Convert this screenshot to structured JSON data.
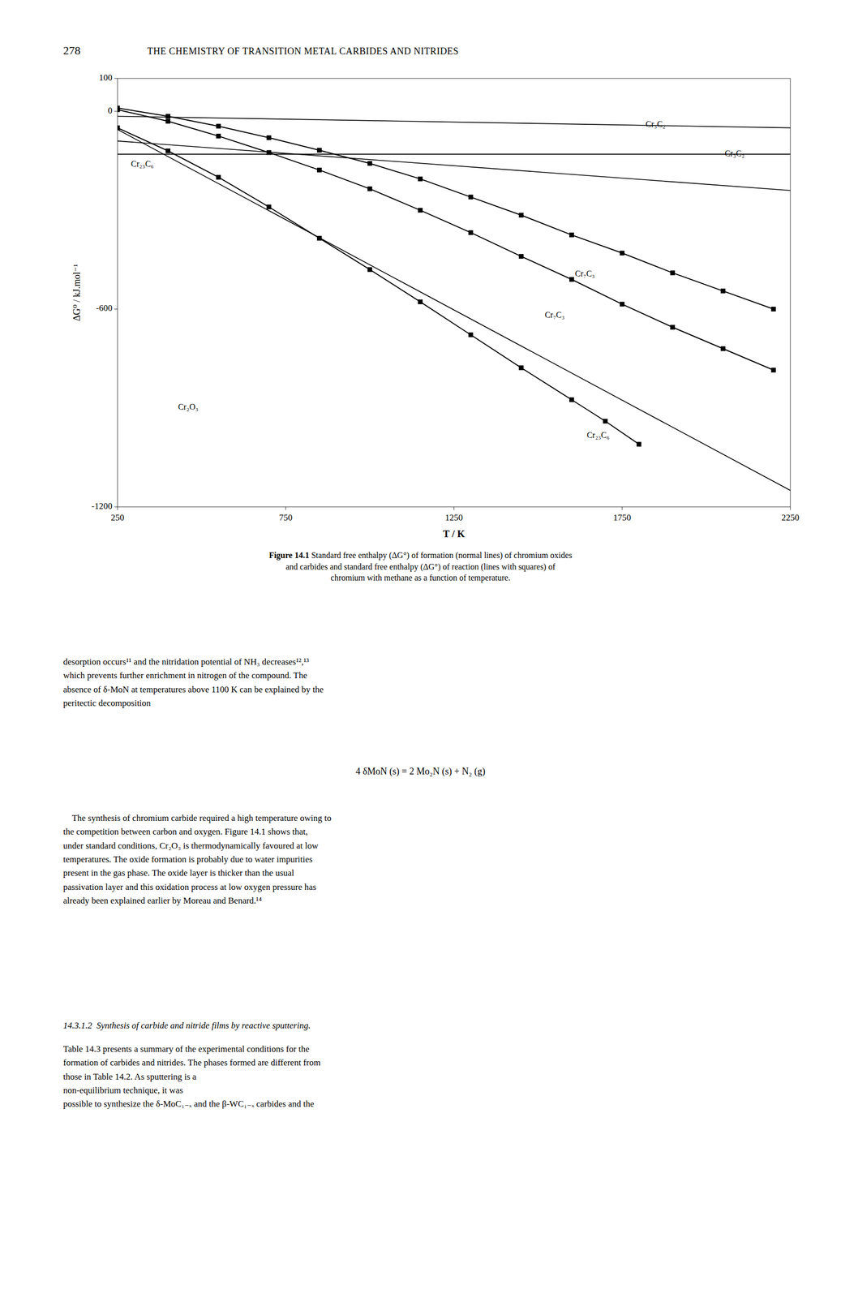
{
  "page": {
    "header_number": "278",
    "header_text": "THE CHEMISTRY OF TRANSITION METAL CARBIDES AND NITRIDES",
    "body_text1": "desorption occurs¹¹ and the nitridation potential of NH₃ decreases¹²,¹³\nwhich prevents further enrichment in nitrogen of the compound. The\nabsence of δ-MoN at temperatures above 1100 K can be explained by the\nperitectic decomposition",
    "equation": "4 δMoN (s) = 2 Mo₂N (s) + N₂ (g)",
    "body_text2": "    The synthesis of chromium carbide required a high temperature owing to\nthe competition between carbon and oxygen. Figure 14.1 shows that,\nunder standard conditions, Cr₂O₃ is thermodynamically favoured at low\ntemperatures. The oxide formation is probably due to water impurities\npresent in the gas phase. The oxide layer is thicker than the usual\npassivation layer and this oxidation process at low oxygen pressure has\nalready been explained earlier by Moreau and Benard.¹⁴",
    "body_text3_italic": "14.3.1.2  Synthesis of carbide and nitride films by reactive sputtering.",
    "body_text3_normal": "Table 14.3 presents a summary of the experimental conditions for the\nformation of carbides and nitrides. The phases formed are different from\nthose in Table 14.2. As sputtering is a \nnon-equilibrium technique, it was\npossible to synthesize the δ-MoC₁₋ₓ and the β-WC₁₋ₓ carbides and the"
  },
  "chart_data": {
    "type": "line",
    "caption_bold": "Figure 14.1",
    "caption_rest": " Standard free enthalpy (ΔG°) of formation (normal lines) of chromium oxides\nand carbides and standard free enthalpy (ΔG°) of reaction (lines with squares) of\nchromium with methane as a function of temperature.",
    "x_label": "T / K",
    "y_label": "ΔG⁰ / kJ.mol⁻¹",
    "xlim": [
      250,
      2250
    ],
    "ylim": [
      -1200,
      100
    ],
    "xticks": [
      250,
      750,
      1250,
      1750,
      2250
    ],
    "yticks": [
      100,
      0,
      -600,
      -1200
    ],
    "grid": false,
    "series": [
      {
        "color": "#000000",
        "marker": "none",
        "line_style": "solid",
        "x": [
          250,
          2250
        ],
        "values": [
          -55,
          -1150
        ]
      },
      {
        "color": "#000000",
        "marker": "none",
        "line_style": "solid",
        "x": [
          250,
          2250
        ],
        "values": [
          -130,
          -130
        ]
      },
      {
        "color": "#000000",
        "marker": "none",
        "line_style": "solid",
        "x": [
          250,
          2250
        ],
        "values": [
          -90,
          -240
        ]
      },
      {
        "color": "#000000",
        "marker": "none",
        "line_style": "solid",
        "x": [
          250,
          2250
        ],
        "values": [
          -15,
          -50
        ]
      },
      {
        "color": "#000000",
        "marker": "square",
        "line_style": "solid",
        "x": [
          250,
          400,
          550,
          700,
          850,
          1000,
          1150,
          1300,
          1450,
          1600,
          1750,
          1900,
          2050,
          2200
        ],
        "values": [
          10,
          -15,
          -45,
          -80,
          -118,
          -158,
          -205,
          -260,
          -315,
          -375,
          -430,
          -490,
          -545,
          -600
        ]
      },
      {
        "color": "#000000",
        "marker": "square",
        "line_style": "solid",
        "x": [
          250,
          400,
          550,
          700,
          850,
          1000,
          1150,
          1300,
          1450,
          1600,
          1750,
          1900,
          2050,
          2200
        ],
        "values": [
          5,
          -30,
          -75,
          -125,
          -178,
          -235,
          -300,
          -368,
          -440,
          -510,
          -585,
          -655,
          -720,
          -785
        ]
      },
      {
        "color": "#000000",
        "marker": "square",
        "line_style": "solid",
        "x": [
          250,
          400,
          550,
          700,
          850,
          1000,
          1150,
          1300,
          1450,
          1600,
          1700,
          1800
        ],
        "values": [
          -50,
          -120,
          -200,
          -290,
          -385,
          -480,
          -578,
          -678,
          -778,
          -875,
          -940,
          -1010
        ]
      }
    ],
    "annotations": [
      {
        "text": "Cr₂O₃",
        "x": 430,
        "y": -900
      },
      {
        "text": "Cr₂₃C₆",
        "x": 290,
        "y": -162
      },
      {
        "text": "Cr₇C₃",
        "x": 1610,
        "y": -495
      },
      {
        "text": "Cr₃C₂",
        "x": 1820,
        "y": -42
      },
      {
        "text": "Cr₃C₂",
        "x": 2055,
        "y": -130
      },
      {
        "text": "Cr₇C₃",
        "x": 1520,
        "y": -620
      },
      {
        "text": "Cr₂₃C₆",
        "x": 1645,
        "y": -985
      }
    ]
  }
}
